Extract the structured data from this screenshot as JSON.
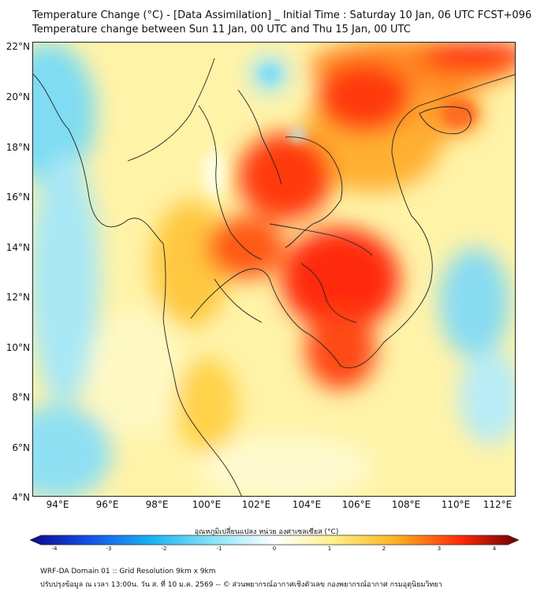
{
  "title_line1": "Temperature Change (°C) - [Data Assimilation] _ Initial Time : Saturday 10 Jan, 06 UTC FCST+096",
  "title_line2": "Temperature change between Sun 11 Jan, 00 UTC and Thu 15 Jan, 00 UTC",
  "lat_labels": [
    "22°N",
    "20°N",
    "18°N",
    "16°N",
    "14°N",
    "12°N",
    "10°N",
    "8°N",
    "6°N",
    "4°N"
  ],
  "lon_labels": [
    "94°E",
    "96°E",
    "98°E",
    "100°E",
    "102°E",
    "104°E",
    "106°E",
    "108°E",
    "110°E",
    "112°E"
  ],
  "colorbar": {
    "title": "อุณหภูมิเปลี่ยนแปลง หน่วย องศาเซลเซียส (°C)",
    "min": -4,
    "max": 4,
    "ticks": [
      "-4",
      "-3",
      "-2",
      "-1",
      "0",
      "1",
      "2",
      "3",
      "4"
    ]
  },
  "footer_line1": "WRF-DA Domain 01 :: Grid Resolution 9km x 9km",
  "footer_line2": "ปรับปรุงข้อมูล ณ เวลา 13:00น. วัน ส. ที่ 10 ม.ค. 2569 -- © ส่วนพยากรณ์อากาศเชิงตัวเลข กองพยากรณ์อากาศ กรมอุตุนิยมวิทยา"
}
